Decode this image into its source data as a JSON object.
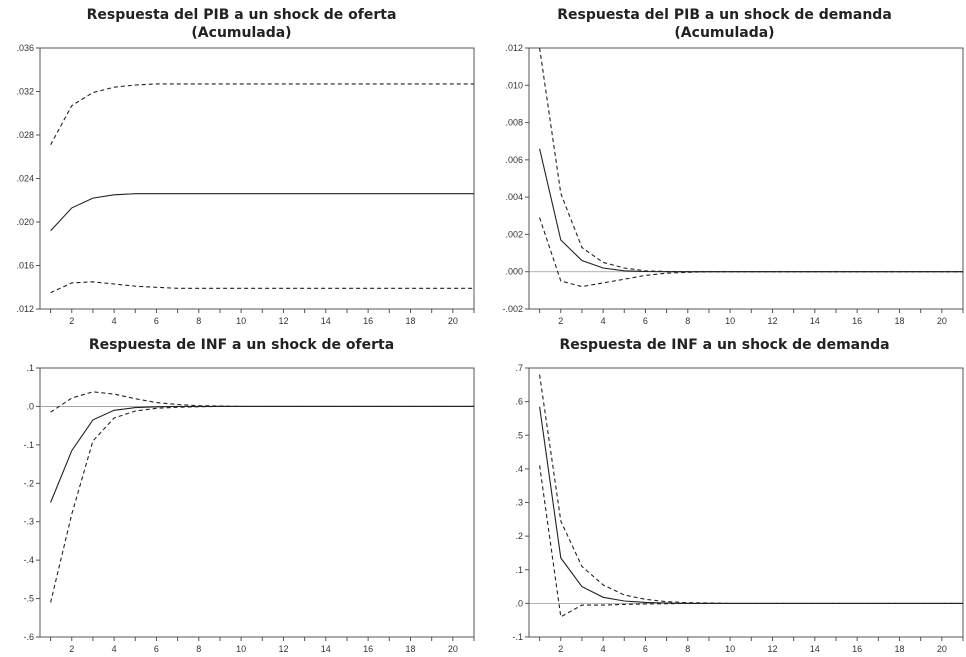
{
  "chart_data": [
    {
      "type": "line",
      "title": "Respuesta del PIB a un shock de oferta",
      "subtitle": "(Acumulada)",
      "xlabel": "",
      "ylabel": "",
      "xlim": [
        0.5,
        21
      ],
      "ylim": [
        0.012,
        0.036
      ],
      "grid": false,
      "yticks": [
        0.012,
        0.016,
        0.02,
        0.024,
        0.028,
        0.032,
        0.036
      ],
      "ytick_labels": [
        ".012",
        ".016",
        ".020",
        ".024",
        ".028",
        ".032",
        ".036"
      ],
      "xticks": [
        2,
        4,
        6,
        8,
        10,
        12,
        14,
        16,
        18,
        20
      ],
      "xtick_labels": [
        "2",
        "4",
        "6",
        "8",
        "10",
        "12",
        "14",
        "16",
        "18",
        "20"
      ],
      "zero_line": false,
      "x": [
        1,
        2,
        3,
        4,
        5,
        6,
        7,
        8,
        9,
        10,
        11,
        12,
        13,
        14,
        15,
        16,
        17,
        18,
        19,
        20,
        21
      ],
      "series": [
        {
          "style": "solid",
          "values": [
            0.0192,
            0.0213,
            0.0222,
            0.0225,
            0.0226,
            0.0226,
            0.0226,
            0.0226,
            0.0226,
            0.0226,
            0.0226,
            0.0226,
            0.0226,
            0.0226,
            0.0226,
            0.0226,
            0.0226,
            0.0226,
            0.0226,
            0.0226,
            0.0226
          ]
        },
        {
          "style": "dashed",
          "values": [
            0.0271,
            0.0307,
            0.0319,
            0.0324,
            0.0326,
            0.0327,
            0.0327,
            0.0327,
            0.0327,
            0.0327,
            0.0327,
            0.0327,
            0.0327,
            0.0327,
            0.0327,
            0.0327,
            0.0327,
            0.0327,
            0.0327,
            0.0327,
            0.0327
          ]
        },
        {
          "style": "dashed",
          "values": [
            0.0135,
            0.0144,
            0.0145,
            0.0143,
            0.0141,
            0.014,
            0.0139,
            0.0139,
            0.0139,
            0.0139,
            0.0139,
            0.0139,
            0.0139,
            0.0139,
            0.0139,
            0.0139,
            0.0139,
            0.0139,
            0.0139,
            0.0139,
            0.0139
          ]
        }
      ]
    },
    {
      "type": "line",
      "title": "Respuesta del PIB a un shock de demanda",
      "subtitle": "(Acumulada)",
      "xlabel": "",
      "ylabel": "",
      "xlim": [
        0.5,
        21
      ],
      "ylim": [
        -0.002,
        0.012
      ],
      "grid": false,
      "yticks": [
        -0.002,
        0.0,
        0.002,
        0.004,
        0.006,
        0.008,
        0.01,
        0.012
      ],
      "ytick_labels": [
        "-.002",
        ".000",
        ".002",
        ".004",
        ".006",
        ".008",
        ".010",
        ".012"
      ],
      "xticks": [
        2,
        4,
        6,
        8,
        10,
        12,
        14,
        16,
        18,
        20
      ],
      "xtick_labels": [
        "2",
        "4",
        "6",
        "8",
        "10",
        "12",
        "14",
        "16",
        "18",
        "20"
      ],
      "zero_line": true,
      "x": [
        1,
        2,
        3,
        4,
        5,
        6,
        7,
        8,
        9,
        10,
        11,
        12,
        13,
        14,
        15,
        16,
        17,
        18,
        19,
        20,
        21
      ],
      "series": [
        {
          "style": "solid",
          "values": [
            0.0066,
            0.0017,
            0.0006,
            0.0002,
            5e-05,
            1e-05,
            0,
            0,
            0,
            0,
            0,
            0,
            0,
            0,
            0,
            0,
            0,
            0,
            0,
            0,
            0
          ]
        },
        {
          "style": "dashed",
          "values": [
            0.012,
            0.0042,
            0.0013,
            0.0005,
            0.0002,
            5e-05,
            1e-05,
            0,
            0,
            0,
            0,
            0,
            0,
            0,
            0,
            0,
            0,
            0,
            0,
            0,
            0
          ]
        },
        {
          "style": "dashed",
          "values": [
            0.0029,
            -0.0005,
            -0.0008,
            -0.0006,
            -0.0004,
            -0.0002,
            -8e-05,
            -3e-05,
            0,
            0,
            0,
            0,
            0,
            0,
            0,
            0,
            0,
            0,
            0,
            0,
            0
          ]
        }
      ]
    },
    {
      "type": "line",
      "title": "Respuesta de INF a un shock de oferta",
      "subtitle": "",
      "xlabel": "",
      "ylabel": "",
      "xlim": [
        0.5,
        21
      ],
      "ylim": [
        -0.6,
        0.1
      ],
      "grid": false,
      "yticks": [
        -0.6,
        -0.5,
        -0.4,
        -0.3,
        -0.2,
        -0.1,
        0.0,
        0.1
      ],
      "ytick_labels": [
        "-.6",
        "-.5",
        "-.4",
        "-.3",
        "-.2",
        "-.1",
        ".0",
        ".1"
      ],
      "xticks": [
        2,
        4,
        6,
        8,
        10,
        12,
        14,
        16,
        18,
        20
      ],
      "xtick_labels": [
        "2",
        "4",
        "6",
        "8",
        "10",
        "12",
        "14",
        "16",
        "18",
        "20"
      ],
      "zero_line": true,
      "x": [
        1,
        2,
        3,
        4,
        5,
        6,
        7,
        8,
        9,
        10,
        11,
        12,
        13,
        14,
        15,
        16,
        17,
        18,
        19,
        20,
        21
      ],
      "series": [
        {
          "style": "solid",
          "values": [
            -0.25,
            -0.115,
            -0.035,
            -0.01,
            -0.003,
            -0.001,
            0,
            0,
            0,
            0,
            0,
            0,
            0,
            0,
            0,
            0,
            0,
            0,
            0,
            0,
            0
          ]
        },
        {
          "style": "dashed",
          "values": [
            -0.015,
            0.022,
            0.038,
            0.032,
            0.02,
            0.01,
            0.005,
            0.002,
            0.001,
            0,
            0,
            0,
            0,
            0,
            0,
            0,
            0,
            0,
            0,
            0,
            0
          ]
        },
        {
          "style": "dashed",
          "values": [
            -0.51,
            -0.28,
            -0.09,
            -0.03,
            -0.012,
            -0.005,
            -0.002,
            -0.001,
            0,
            0,
            0,
            0,
            0,
            0,
            0,
            0,
            0,
            0,
            0,
            0,
            0
          ]
        }
      ]
    },
    {
      "type": "line",
      "title": "Respuesta de INF a un shock de demanda",
      "subtitle": "",
      "xlabel": "",
      "ylabel": "",
      "xlim": [
        0.5,
        21
      ],
      "ylim": [
        -0.1,
        0.7
      ],
      "grid": false,
      "yticks": [
        -0.1,
        0.0,
        0.1,
        0.2,
        0.3,
        0.4,
        0.5,
        0.6,
        0.7
      ],
      "ytick_labels": [
        "-.1",
        ".0",
        ".1",
        ".2",
        ".3",
        ".4",
        ".5",
        ".6",
        ".7"
      ],
      "xticks": [
        2,
        4,
        6,
        8,
        10,
        12,
        14,
        16,
        18,
        20
      ],
      "xtick_labels": [
        "2",
        "4",
        "6",
        "8",
        "10",
        "12",
        "14",
        "16",
        "18",
        "20"
      ],
      "zero_line": true,
      "x": [
        1,
        2,
        3,
        4,
        5,
        6,
        7,
        8,
        9,
        10,
        11,
        12,
        13,
        14,
        15,
        16,
        17,
        18,
        19,
        20,
        21
      ],
      "series": [
        {
          "style": "solid",
          "values": [
            0.585,
            0.135,
            0.05,
            0.018,
            0.007,
            0.003,
            0.001,
            0,
            0,
            0,
            0,
            0,
            0,
            0,
            0,
            0,
            0,
            0,
            0,
            0,
            0
          ]
        },
        {
          "style": "dashed",
          "values": [
            0.68,
            0.245,
            0.11,
            0.055,
            0.025,
            0.012,
            0.005,
            0.002,
            0.001,
            0,
            0,
            0,
            0,
            0,
            0,
            0,
            0,
            0,
            0,
            0,
            0
          ]
        },
        {
          "style": "dashed",
          "values": [
            0.41,
            -0.04,
            -0.005,
            -0.005,
            -0.003,
            -0.002,
            -0.001,
            0,
            0,
            0,
            0,
            0,
            0,
            0,
            0,
            0,
            0,
            0,
            0,
            0,
            0
          ]
        }
      ]
    }
  ]
}
